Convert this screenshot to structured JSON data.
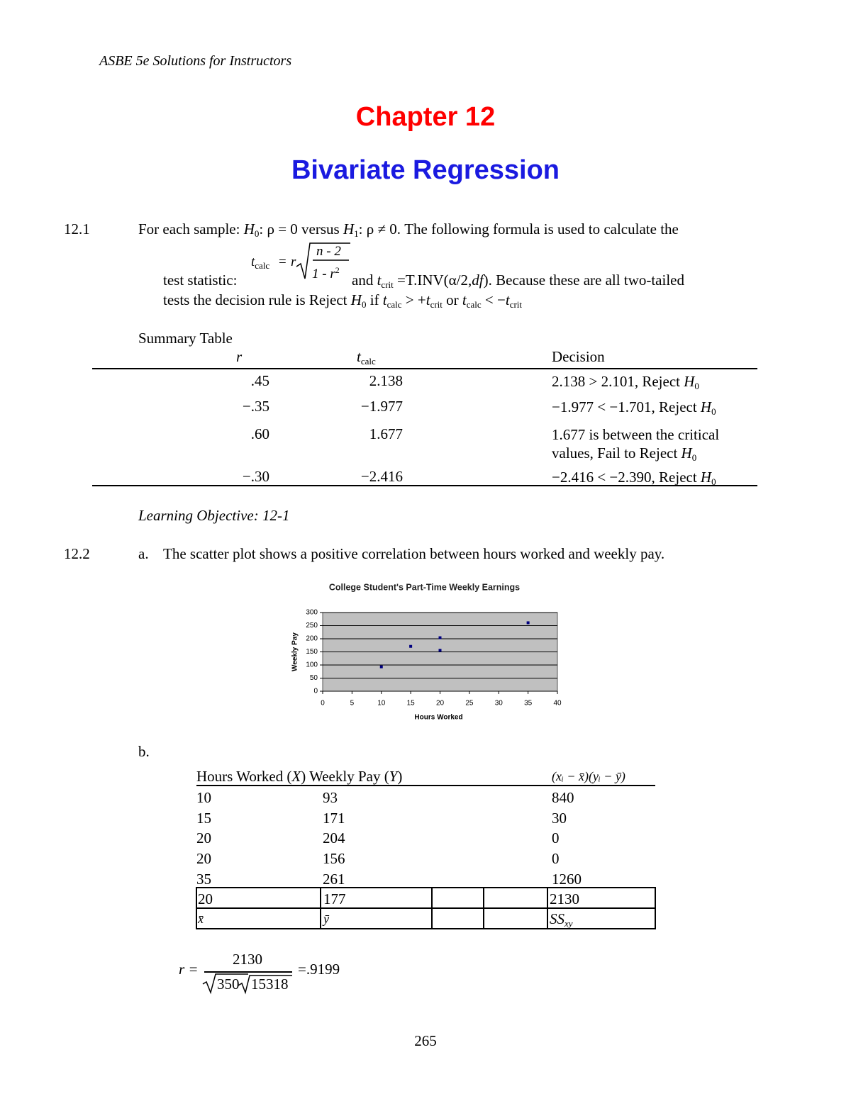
{
  "header": "ASBE 5e Solutions for Instructors",
  "chapter": "Chapter 12",
  "title": "Bivariate Regression",
  "p12_1": {
    "number": "12.1",
    "line1": [
      "For each sample: ",
      "H",
      "0",
      ": ρ = 0 versus ",
      "H",
      "1",
      ": ρ ≠ 0. The following formula is used to calculate the"
    ],
    "formula": [
      "t",
      "calc",
      "=",
      "r",
      "n - 2",
      "1 - r",
      "2"
    ],
    "line2": [
      "test statistic:",
      "and ",
      "t",
      "crit",
      " =T.INV(α/2,",
      "df",
      "). Because these are all two-tailed"
    ],
    "line3": [
      "tests the decision rule is Reject ",
      "H",
      "0",
      " if ",
      "t",
      "calc",
      " > +",
      "t",
      "crit",
      " or ",
      "t",
      "calc",
      " < −",
      "t",
      "crit"
    ],
    "summary_caption": "Summary Table",
    "summary_headers": {
      "r": "r",
      "t": "t",
      "t_sub": "calc",
      "decision": "Decision"
    },
    "summary_rows": [
      {
        "r": ".45",
        "t": "2.138",
        "decision": [
          "2.138 > 2.101, Reject ",
          "H",
          "0"
        ]
      },
      {
        "r": "−.35",
        "t": "−1.977",
        "decision": [
          "−1.977 < −1.701, Reject ",
          "H",
          "0"
        ]
      },
      {
        "r": ".60",
        "t": "1.677",
        "decision": [
          "1.677 is between the critical values, Fail to Reject ",
          "H",
          "0"
        ]
      },
      {
        "r": "−.30",
        "t": "−2.416",
        "decision": [
          "−2.416 < −2.390, Reject ",
          "H",
          "0"
        ]
      }
    ],
    "objective": "Learning Objective: 12-1"
  },
  "p12_2": {
    "number": "12.2",
    "a_label": "a.",
    "a_text": "The scatter plot shows a positive correlation between hours worked and weekly pay.",
    "b_label": "b.",
    "table_headers": [
      "Hours Worked (",
      "X",
      ") Weekly Pay (",
      "Y",
      ")",
      "(xᵢ − x̄)(yᵢ − ȳ)"
    ],
    "table_rows": [
      [
        "10",
        "93",
        "840"
      ],
      [
        "15",
        "171",
        "30"
      ],
      [
        "20",
        "204",
        "0"
      ],
      [
        "20",
        "156",
        "0"
      ],
      [
        "35",
        "261",
        "1260"
      ]
    ],
    "totals": [
      "20",
      "177",
      "2130"
    ],
    "totals_labels": [
      "x̄",
      "ȳ",
      "SS",
      "xy"
    ],
    "r_formula": [
      "r =",
      "2130",
      "350",
      "15318",
      "=.9199"
    ]
  },
  "chart_data": {
    "type": "scatter",
    "title": "College Student's Part-Time Weekly Earnings",
    "x_label": "Hours Worked",
    "y_label": "Weekly Pay",
    "x": [
      10,
      15,
      20,
      20,
      35
    ],
    "values": [
      93,
      171,
      204,
      156,
      261
    ],
    "color": "#000080",
    "plot_background": "#c0c0c0",
    "xlim": [
      0,
      40
    ],
    "xticks": [
      0,
      5,
      10,
      15,
      20,
      25,
      30,
      35,
      40
    ],
    "ylim": [
      0,
      300
    ],
    "yticks": [
      0,
      50,
      100,
      150,
      200,
      250,
      300
    ],
    "grid": true
  },
  "page_number": "265"
}
